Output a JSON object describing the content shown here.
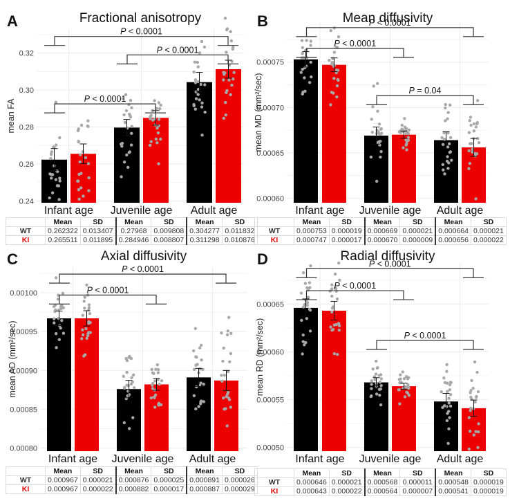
{
  "chart_data": [
    {
      "id": "A",
      "type": "bar",
      "letter": "A",
      "title": "Fractional anisotropy",
      "ylabel": "mean FA",
      "xlabel": "",
      "categories": [
        "Infant age",
        "Juvenile age",
        "Adult age"
      ],
      "ylim": [
        0.239,
        0.333
      ],
      "yticks": [
        0.24,
        0.26,
        0.28,
        0.3,
        0.32
      ],
      "ytick_labels": [
        "0.24",
        "0.26",
        "0.28",
        "0.30",
        "0.32"
      ],
      "grid": true,
      "series": [
        {
          "name": "WT",
          "color": "#000000",
          "values": [
            0.262322,
            0.27968,
            0.304277
          ],
          "sd": [
            0.013407,
            0.009808,
            0.011832
          ]
        },
        {
          "name": "KI",
          "color": "#ee0000",
          "values": [
            0.265511,
            0.284946,
            0.311298
          ],
          "sd": [
            0.011895,
            0.008807,
            0.010876
          ]
        }
      ],
      "annotations": [
        {
          "text_prefix": "P",
          "text": " < 0.0001",
          "from_category": 0,
          "to_category": 2,
          "level": 0.329
        },
        {
          "text_prefix": "P",
          "text": " < 0.0001",
          "from_category": 1,
          "to_category": 2,
          "level": 0.319
        },
        {
          "text_prefix": "P",
          "text": " < 0.0001",
          "from_category": 0,
          "to_category": 1,
          "level": 0.2925
        }
      ],
      "table": {
        "headers": [
          "Mean",
          "SD",
          "Mean",
          "SD",
          "Mean",
          "SD"
        ],
        "rows": [
          {
            "label": "WT",
            "values": [
              "0.262322",
              "0.013407",
              "0.27968",
              "0.009808",
              "0.304277",
              "0.011832"
            ]
          },
          {
            "label": "KI",
            "values": [
              "0.265511",
              "0.011895",
              "0.284946",
              "0.008807",
              "0.311298",
              "0.010876"
            ]
          }
        ]
      }
    },
    {
      "id": "B",
      "type": "bar",
      "letter": "B",
      "title": "Mean diffusivity",
      "ylabel": "mean MD (mm²/sec)",
      "xlabel": "",
      "categories": [
        "Infant age",
        "Juvenile age",
        "Adult age"
      ],
      "ylim": [
        0.000595,
        0.000794
      ],
      "yticks": [
        0.0006,
        0.00065,
        0.0007,
        0.00075
      ],
      "ytick_labels": [
        "0.00060",
        "0.00065",
        "0.00070",
        "0.00075"
      ],
      "grid": true,
      "series": [
        {
          "name": "WT",
          "color": "#000000",
          "values": [
            0.000753,
            0.000669,
            0.000664
          ],
          "sd": [
            1.9e-05,
            2.1e-05,
            2.1e-05
          ]
        },
        {
          "name": "KI",
          "color": "#ee0000",
          "values": [
            0.000747,
            0.00067,
            0.000656
          ],
          "sd": [
            1.7e-05,
            9e-06,
            2.2e-05
          ]
        }
      ],
      "annotations": [
        {
          "text_prefix": "P",
          "text": " < 0.0001",
          "from_category": 0,
          "to_category": 2,
          "level": 0.000788
        },
        {
          "text_prefix": "P",
          "text": " < 0.0001",
          "from_category": 0,
          "to_category": 1,
          "level": 0.000765
        },
        {
          "text_prefix": "P",
          "text": " = 0.04",
          "from_category": 1,
          "to_category": 2,
          "level": 0.000713
        }
      ],
      "table": {
        "headers": [
          "Mean",
          "SD",
          "Mean",
          "SD",
          "Mean",
          "SD"
        ],
        "rows": [
          {
            "label": "WT",
            "values": [
              "0.000753",
              "0.000019",
              "0.000669",
              "0.000021",
              "0.000664",
              "0.000021"
            ]
          },
          {
            "label": "KI",
            "values": [
              "0.000747",
              "0.000017",
              "0.000670",
              "0.000009",
              "0.000656",
              "0.000022"
            ]
          }
        ]
      }
    },
    {
      "id": "C",
      "type": "bar",
      "letter": "C",
      "title": "Axial diffusivity",
      "ylabel": "mean AD (mm²/sec)",
      "xlabel": "",
      "categories": [
        "Infant age",
        "Juvenile age",
        "Adult age"
      ],
      "ylim": [
        0.000796,
        0.001033
      ],
      "yticks": [
        0.0008,
        0.00085,
        0.0009,
        0.00095,
        0.001
      ],
      "ytick_labels": [
        "0.00080",
        "0.00085",
        "0.00090",
        "0.00095",
        "0.00100"
      ],
      "grid": true,
      "series": [
        {
          "name": "WT",
          "color": "#000000",
          "values": [
            0.000967,
            0.000876,
            0.000891
          ],
          "sd": [
            2.1e-05,
            2.5e-05,
            2.6e-05
          ]
        },
        {
          "name": "KI",
          "color": "#ee0000",
          "values": [
            0.000967,
            0.000882,
            0.000887
          ],
          "sd": [
            2.2e-05,
            1.7e-05,
            2.9e-05
          ]
        }
      ],
      "annotations": [
        {
          "text_prefix": "P",
          "text": " < 0.0001",
          "from_category": 0,
          "to_category": 2,
          "level": 0.001024
        },
        {
          "text_prefix": "P",
          "text": " < 0.0001",
          "from_category": 0,
          "to_category": 1,
          "level": 0.000997
        }
      ],
      "table": {
        "headers": [
          "Mean",
          "SD",
          "Mean",
          "SD",
          "Mean",
          "SD"
        ],
        "rows": [
          {
            "label": "WT",
            "values": [
              "0.000967",
              "0.000021",
              "0.000876",
              "0.000025",
              "0.000891",
              "0.000026"
            ]
          },
          {
            "label": "KI",
            "values": [
              "0.000967",
              "0.000022",
              "0.000882",
              "0.000017",
              "0.000887",
              "0.000029"
            ]
          }
        ]
      }
    },
    {
      "id": "D",
      "type": "bar",
      "letter": "D",
      "title": "Radial diffusivity",
      "ylabel": "mean RD (mm²/sec)",
      "xlabel": "",
      "categories": [
        "Infant age",
        "Juvenile age",
        "Adult age"
      ],
      "ylim": [
        0.000496,
        0.000693
      ],
      "yticks": [
        0.0005,
        0.00055,
        0.0006,
        0.00065
      ],
      "ytick_labels": [
        "0.00050",
        "0.00055",
        "0.00060",
        "0.00065"
      ],
      "grid": true,
      "series": [
        {
          "name": "WT",
          "color": "#000000",
          "values": [
            0.000646,
            0.000568,
            0.000548
          ],
          "sd": [
            2.1e-05,
            1.1e-05,
            1.9e-05
          ]
        },
        {
          "name": "KI",
          "color": "#ee0000",
          "values": [
            0.000643,
            0.000564,
            0.000541
          ],
          "sd": [
            2.2e-05,
            7e-06,
            1.9e-05
          ]
        }
      ],
      "annotations": [
        {
          "text_prefix": "P",
          "text": " < 0.0001",
          "from_category": 0,
          "to_category": 2,
          "level": 0.000687
        },
        {
          "text_prefix": "P",
          "text": " < 0.0001",
          "from_category": 0,
          "to_category": 1,
          "level": 0.000664
        },
        {
          "text_prefix": "P",
          "text": " < 0.0001",
          "from_category": 1,
          "to_category": 2,
          "level": 0.000612
        }
      ],
      "table": {
        "headers": [
          "Mean",
          "SD",
          "Mean",
          "SD",
          "Mean",
          "SD"
        ],
        "rows": [
          {
            "label": "WT",
            "values": [
              "0.000646",
              "0.000021",
              "0.000568",
              "0.000011",
              "0.000548",
              "0.000019"
            ]
          },
          {
            "label": "KI",
            "values": [
              "0.000643",
              "0.000022",
              "0.000564",
              "0.000007",
              "0.000541",
              "0.000019"
            ]
          }
        ]
      }
    }
  ]
}
